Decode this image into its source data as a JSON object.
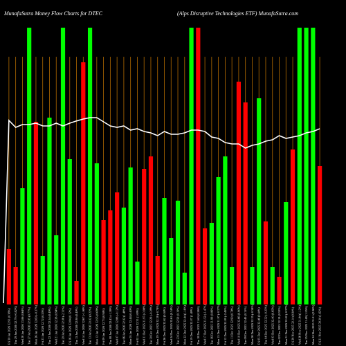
{
  "chart_data": {
    "type": "bar",
    "title_left": "MunafaSutra  Money Flow  Charts for DTEC",
    "title_right": "(Alps Disruptive   Technologies ETF) MunafaSutra.com",
    "ylim": [
      0,
      100
    ],
    "grid": "vertical",
    "colors": {
      "up": "#00ff00",
      "down": "#ff0000",
      "line": "#ffffff",
      "grid": "#b36b00",
      "background": "#000000"
    },
    "categories": [
      "Fri 30 Jan 2026 32.91 (0.36%)",
      "Thu 29 Jan 2026 32.79 (-0.82%)",
      "Wed 28 Jan 2026 33.06 (0.64%)",
      "Tue 27 Jan 2026 32.85 (0.77%)",
      "Mon 26 Jan 2026 32.60 (-0.37%)",
      "Fri 23 Jan 2026 32.72 (0.55%)",
      "Thu 22 Jan 2026 32.54 (0.49%)",
      "Wed 21 Jan 2026 32.38 (0.94%)",
      "Tue 20 Jan 2026 32.08 (-2.31%)",
      "Fri 16 Jan 2026 32.84 (0.12%)",
      "Thu 15 Jan 2026 32.80 (0.40%)",
      "Wed 14 Jan 2026 32.67 (-1.06%)",
      "Tue 13 Jan 2026 33.02 (0.22%)",
      "Mon 12 Jan 2026 32.95 (0.68%)",
      "Fri 09 Jan 2026 32.73 (0.94%)",
      "Thu 08 Jan 2026 32.43 (-1.38%)",
      "Wed 07 Jan 2026 32.88 (-0.12%)",
      "Tue 06 Jan 2026 32.92 (1.48%)",
      "Mon 05 Jan 2026 32.44 (0.40%)",
      "Fri 02 Jan 2026 32.31 (1.08%)",
      "Wed 31 Dec 2025 31.97 (-0.98%)",
      "Tue 30 Dec 2025 32.29 (-0.28%)",
      "Mon 29 Dec 2025 32.38 (-0.74%)",
      "Fri 26 Dec 2025 32.62 (0.04%)",
      "Wed 24 Dec 2025 32.61 (0.34%)",
      "Tue 23 Dec 2025 32.50 (0.19%)",
      "Mon 22 Dec 2025 32.44 (1.16%)",
      "Fri 19 Dec 2025 32.07 (1.49%)",
      "Thu 18 Dec 2025 31.60 (0.26%)",
      "Wed 17 Dec 2025 31.52 (-1.47%)",
      "Tue 16 Dec 2025 31.99 (0.06%)",
      "Mon 15 Dec 2025 31.97 (-0.37%)",
      "Fri 12 Dec 2025 32.09 (-2.45%)",
      "Thu 11 Dec 2025 32.90 (0.74%)",
      "Wed 10 Dec 2025 32.66 (0.80%)",
      "Tue 09 Dec 2025 32.40 (0.15%)",
      "Mon 08 Dec 2025 32.35 (-0.34%)",
      "Fri 05 Dec 2025 32.46 (0.44%)",
      "Thu 04 Dec 2025 32.32 (-0.25%)",
      "Wed 03 Dec 2025 32.40 (0.65%)",
      "Tue 02 Dec 2025 32.19 (0.53%)",
      "Mon 01 Dec 2025 32.02 (-0.37%)",
      "Fri 28 Nov 2025 32.14 (0.94%)",
      "Wed 26 Nov 2025 31.84 (1.12%)",
      "Tue 25 Nov 2025 31.49 (1.55%)",
      "Mon 24 Nov 2025 31.01 (2.36%)",
      "Fri 21 Nov 2025 30.30 (1.62%)"
    ],
    "bar_colors": [
      "red",
      "red",
      "green",
      "green",
      "red",
      "green",
      "green",
      "green",
      "green",
      "green",
      "red",
      "red",
      "green",
      "green",
      "red",
      "red",
      "red",
      "green",
      "green",
      "green",
      "red",
      "red",
      "red",
      "green",
      "green",
      "green",
      "green",
      "green",
      "red",
      "red",
      "green",
      "green",
      "green",
      "green",
      "red",
      "red",
      "green",
      "green",
      "red",
      "green",
      "red",
      "green",
      "red",
      "green",
      "green",
      "green",
      "red"
    ],
    "bar_values": [
      20,
      13.5,
      42,
      100,
      66,
      17.5,
      67.5,
      25,
      100,
      52.5,
      8.5,
      87.5,
      100,
      51,
      30.5,
      34,
      40.5,
      35,
      49.5,
      15.5,
      49,
      53.5,
      17.5,
      38.5,
      24,
      37.5,
      11.5,
      100,
      100,
      27.5,
      29.5,
      46,
      53.5,
      13.5,
      80.5,
      73,
      13.5,
      74.5,
      30,
      13.5,
      10,
      37,
      56,
      100,
      100,
      100,
      50
    ],
    "line_values": [
      66.5,
      64,
      65,
      65,
      65.5,
      64.5,
      64.5,
      65.5,
      64.5,
      65.5,
      66.3,
      67,
      67.5,
      67.5,
      66,
      64.5,
      64,
      64.5,
      63,
      63.5,
      62.5,
      62,
      61,
      62.5,
      61.5,
      61.5,
      62,
      63,
      63,
      62.5,
      60.5,
      60,
      58.5,
      58,
      58,
      56.5,
      57.5,
      58,
      59,
      59.5,
      61,
      60,
      60.5,
      61,
      62,
      62.5,
      63.5
    ]
  }
}
